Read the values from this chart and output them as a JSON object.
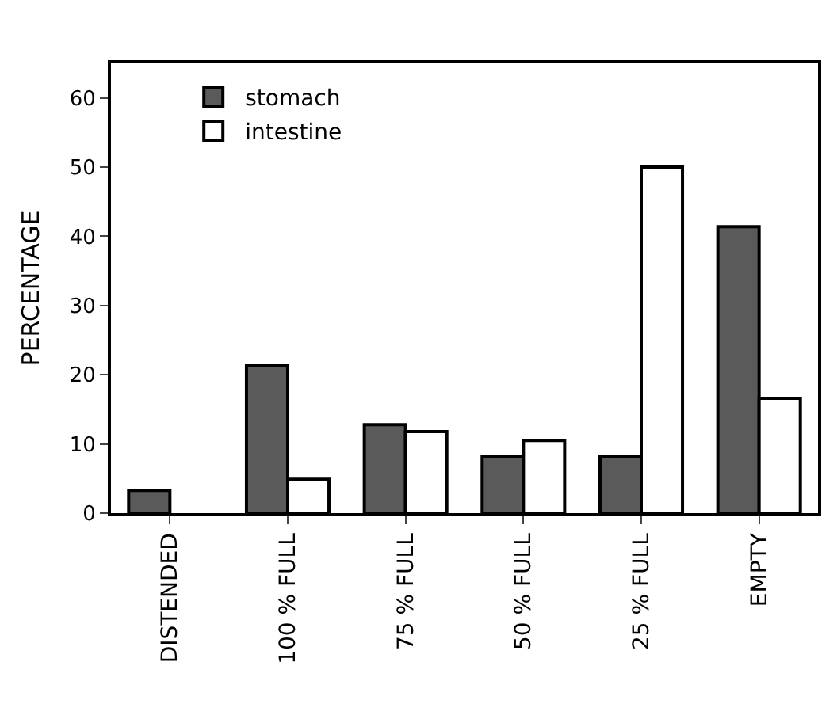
{
  "chart_data": {
    "type": "bar",
    "ylabel": "PERCENTAGE",
    "categories": [
      "DISTENDED",
      "100 % FULL",
      "75 % FULL",
      "50 % FULL",
      "25 % FULL",
      "EMPTY"
    ],
    "series": [
      {
        "name": "stomach",
        "color": "#5a5a5a",
        "values": [
          3.3,
          21.3,
          12.8,
          8.2,
          8.2,
          41.4
        ]
      },
      {
        "name": "intestine",
        "color": "#ffffff",
        "values": [
          null,
          4.9,
          11.8,
          10.5,
          50,
          16.6
        ]
      }
    ],
    "ylim": [
      0,
      65
    ],
    "yticks": [
      0,
      10,
      20,
      30,
      40,
      50,
      60
    ],
    "grid": false,
    "legend": "top left"
  }
}
